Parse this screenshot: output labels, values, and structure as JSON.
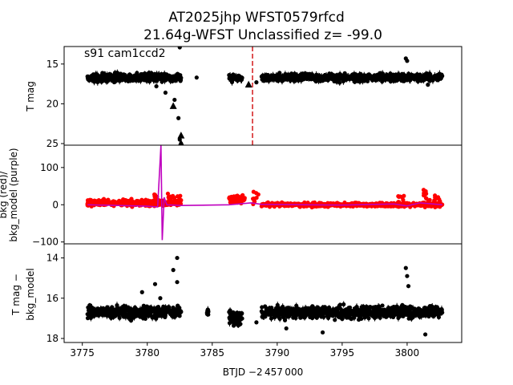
{
  "title_line1": "AT2025jhp  WFST0579rfcd",
  "title_line2": "21.64g-WFST Unclassified z= -99.0",
  "colors": {
    "data": "#000000",
    "bkg": "#ff0000",
    "bkg_model": "#bf00bf",
    "marker": "#d62728"
  },
  "chart_data": [
    {
      "type": "scatter",
      "annotation": "s91 cam1ccd2",
      "ylabel": "T mag",
      "xlim": [
        3773.6,
        3804.2
      ],
      "ylim": [
        25.2,
        12.8
      ],
      "y_inverted": true,
      "yticks": [
        15,
        20,
        25
      ],
      "vline": {
        "x": 3788.1,
        "style": "dashed",
        "color": "#d62728"
      },
      "series": [
        {
          "segments": [
            {
              "x0": 3775.4,
              "x1": 3782.6,
              "y": 16.7,
              "spread": 0.7
            },
            {
              "x0": 3786.3,
              "x1": 3787.3,
              "y": 16.8,
              "spread": 0.6
            },
            {
              "x0": 3788.8,
              "x1": 3802.7,
              "y": 16.7,
              "spread": 0.7
            }
          ],
          "points": [
            [
              3780.7,
              17.8
            ],
            [
              3781.4,
              18.6
            ],
            [
              3782.1,
              19.5
            ],
            [
              3782.4,
              21.8
            ],
            [
              3782.5,
              24.5
            ],
            [
              3782.6,
              25.0
            ],
            [
              3782.5,
              12.9
            ],
            [
              3783.8,
              16.7
            ],
            [
              3788.4,
              17.3
            ],
            [
              3799.9,
              14.3
            ],
            [
              3800.0,
              14.6
            ],
            [
              3801.6,
              17.6
            ]
          ],
          "triangles": [
            [
              3782.0,
              20.3
            ],
            [
              3782.6,
              24.0
            ],
            [
              3782.6,
              25.0
            ],
            [
              3787.8,
              17.6
            ]
          ]
        }
      ]
    },
    {
      "type": "line",
      "ylabel_line1": "bkg (red)/",
      "ylabel_line2": "bkg_model (purple)",
      "xlim": [
        3773.6,
        3804.2
      ],
      "ylim": [
        -105,
        160
      ],
      "yticks": [
        -100,
        0,
        100
      ],
      "series": [
        {
          "segments": [
            {
              "x0": 3775.4,
              "x1": 3782.6,
              "base": 5,
              "noise": 12
            },
            {
              "x0": 3786.3,
              "x1": 3787.5,
              "base": 15,
              "noise": 15
            },
            {
              "x0": 3788.8,
              "x1": 3802.7,
              "base": 0,
              "noise": 8
            }
          ],
          "bumps": [
            [
              3775.6,
              12
            ],
            [
              3780.7,
              35
            ],
            [
              3781.8,
              30
            ],
            [
              3782.3,
              25
            ],
            [
              3788.3,
              35
            ],
            [
              3799.5,
              25
            ],
            [
              3801.5,
              40
            ],
            [
              3802.3,
              35
            ]
          ]
        },
        {
          "model": [
            [
              3775.4,
              0
            ],
            [
              3780.0,
              -4
            ],
            [
              3780.8,
              -6
            ],
            [
              3781.05,
              160
            ],
            [
              3781.15,
              -95
            ],
            [
              3781.3,
              20
            ],
            [
              3781.5,
              0
            ],
            [
              3782.6,
              -2
            ],
            [
              3786.3,
              0
            ],
            [
              3787.0,
              2
            ],
            [
              3788.0,
              5
            ],
            [
              3788.8,
              1
            ],
            [
              3795.0,
              -1
            ],
            [
              3799.0,
              2
            ],
            [
              3800.0,
              -3
            ],
            [
              3801.0,
              5
            ],
            [
              3802.7,
              0
            ]
          ]
        }
      ]
    },
    {
      "type": "scatter",
      "ylabel_line1": "T mag −",
      "ylabel_line2": "bkg_model",
      "xlim": [
        3773.6,
        3804.2
      ],
      "xlabel": "BTJD −2 457 000",
      "ylim": [
        18.2,
        13.3
      ],
      "y_inverted": true,
      "yticks": [
        14,
        16,
        18
      ],
      "xticks": [
        3775,
        3780,
        3785,
        3790,
        3795,
        3800
      ],
      "series": [
        {
          "segments": [
            {
              "x0": 3775.4,
              "x1": 3782.6,
              "y": 16.7,
              "spread": 0.45
            },
            {
              "x0": 3784.6,
              "x1": 3784.7,
              "y": 16.7,
              "spread": 0.25
            },
            {
              "x0": 3786.3,
              "x1": 3787.3,
              "y": 17.0,
              "spread": 0.6
            },
            {
              "x0": 3788.8,
              "x1": 3802.7,
              "y": 16.7,
              "spread": 0.45
            }
          ],
          "points": [
            [
              3782.5,
              13.2
            ],
            [
              3782.3,
              14.0
            ],
            [
              3782.0,
              14.6
            ],
            [
              3782.3,
              15.2
            ],
            [
              3780.6,
              15.3
            ],
            [
              3779.6,
              15.7
            ],
            [
              3781.0,
              16.0
            ],
            [
              3788.4,
              17.2
            ],
            [
              3790.7,
              17.5
            ],
            [
              3793.5,
              17.7
            ],
            [
              3799.9,
              14.5
            ],
            [
              3800.0,
              14.9
            ],
            [
              3800.1,
              15.4
            ],
            [
              3801.4,
              17.8
            ]
          ]
        }
      ]
    }
  ]
}
